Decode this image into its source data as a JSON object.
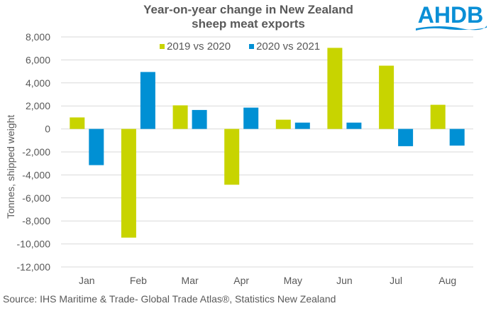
{
  "logo": {
    "text": "AHDB",
    "color": "#0a8fd6"
  },
  "chart_data": {
    "type": "bar",
    "title": "Year-on-year change in New Zealand sheep meat exports",
    "title_lines": [
      "Year-on-year change in New Zealand",
      "sheep meat exports"
    ],
    "xlabel": "",
    "ylabel": "Tonnes, shipped weight",
    "ylim": [
      -12000,
      8000
    ],
    "yticks": [
      8000,
      6000,
      4000,
      2000,
      0,
      -2000,
      -4000,
      -6000,
      -8000,
      -10000,
      -12000
    ],
    "ytick_labels": [
      "8,000",
      "6,000",
      "4,000",
      "2,000",
      "0",
      "-2,000",
      "-4,000",
      "-6,000",
      "-8,000",
      "-10,000",
      "-12,000"
    ],
    "categories": [
      "Jan",
      "Feb",
      "Mar",
      "Apr",
      "May",
      "Jun",
      "Jul",
      "Aug"
    ],
    "series": [
      {
        "name": "2019 vs 2020",
        "color": "#c8d400",
        "values": [
          1000,
          -9450,
          2050,
          -4850,
          800,
          7050,
          5500,
          2100
        ]
      },
      {
        "name": "2020 vs 2021",
        "color": "#0090d4",
        "values": [
          -3150,
          4950,
          1650,
          1850,
          550,
          550,
          -1500,
          -1450
        ]
      }
    ],
    "grid": true,
    "legend": "top-center",
    "source": "Source: IHS Maritime & Trade- Global Trade Atlas®, Statistics New Zealand"
  }
}
